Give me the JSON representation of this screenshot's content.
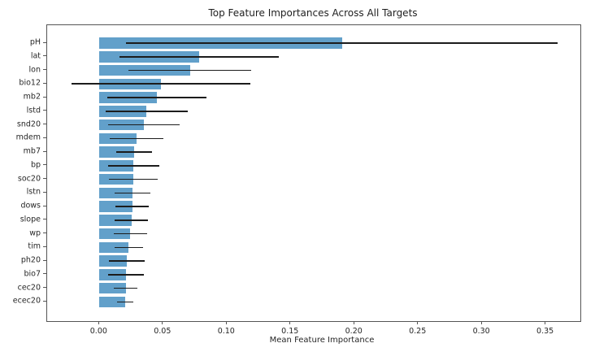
{
  "chart_data": {
    "type": "bar",
    "orientation": "horizontal",
    "title": "Top Feature Importances Across All Targets",
    "xlabel": "Mean Feature Importance",
    "ylabel": "",
    "legend": null,
    "grid": false,
    "bar_color": "#62a0ca",
    "error_color": "#1c1c1c",
    "axis_color": "#555555",
    "text_color": "#262626",
    "categories": [
      "pH",
      "lat",
      "lon",
      "bio12",
      "mb2",
      "lstd",
      "snd20",
      "mdem",
      "mb7",
      "bp",
      "soc20",
      "lstn",
      "dows",
      "slope",
      "wp",
      "tim",
      "ph20",
      "bio7",
      "cec20",
      "ecec20"
    ],
    "values": [
      0.19,
      0.078,
      0.071,
      0.048,
      0.045,
      0.037,
      0.035,
      0.029,
      0.027,
      0.0268,
      0.0265,
      0.026,
      0.0258,
      0.025,
      0.0242,
      0.0229,
      0.0215,
      0.021,
      0.0205,
      0.02
    ],
    "errors": [
      0.169,
      0.0625,
      0.048,
      0.07,
      0.039,
      0.032,
      0.028,
      0.021,
      0.014,
      0.02,
      0.019,
      0.014,
      0.013,
      0.013,
      0.013,
      0.011,
      0.014,
      0.014,
      0.009,
      0.0065
    ],
    "xticks": [
      0.0,
      0.05,
      0.1,
      0.15,
      0.2,
      0.25,
      0.3,
      0.35
    ],
    "xtick_labels": [
      "0.00",
      "0.05",
      "0.10",
      "0.15",
      "0.20",
      "0.25",
      "0.30",
      "0.35"
    ],
    "xlim": [
      -0.041,
      0.377
    ]
  }
}
